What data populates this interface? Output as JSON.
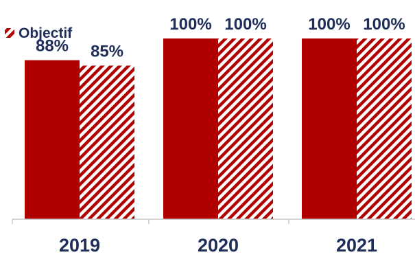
{
  "chart_data": {
    "type": "bar",
    "categories": [
      "2019",
      "2020",
      "2021"
    ],
    "series": [
      {
        "values": [
          88,
          100,
          100
        ]
      },
      {
        "name": "Objectif",
        "values": [
          85,
          100,
          100
        ]
      }
    ],
    "data_labels": [
      [
        "88%",
        "100%",
        "100%"
      ],
      [
        "85%",
        "100%",
        "100%"
      ]
    ],
    "ylim": [
      0,
      100
    ],
    "grid": false,
    "legend": {
      "position": "top-left",
      "label": "Objectif"
    }
  },
  "colors": {
    "solid": "#b00000",
    "hatch": "#b00000",
    "label_text": "#1f2d5a",
    "axis": "#c8c8c8",
    "background": "#ffffff"
  },
  "icons": {
    "legend_swatch": "hatched-square-icon"
  }
}
